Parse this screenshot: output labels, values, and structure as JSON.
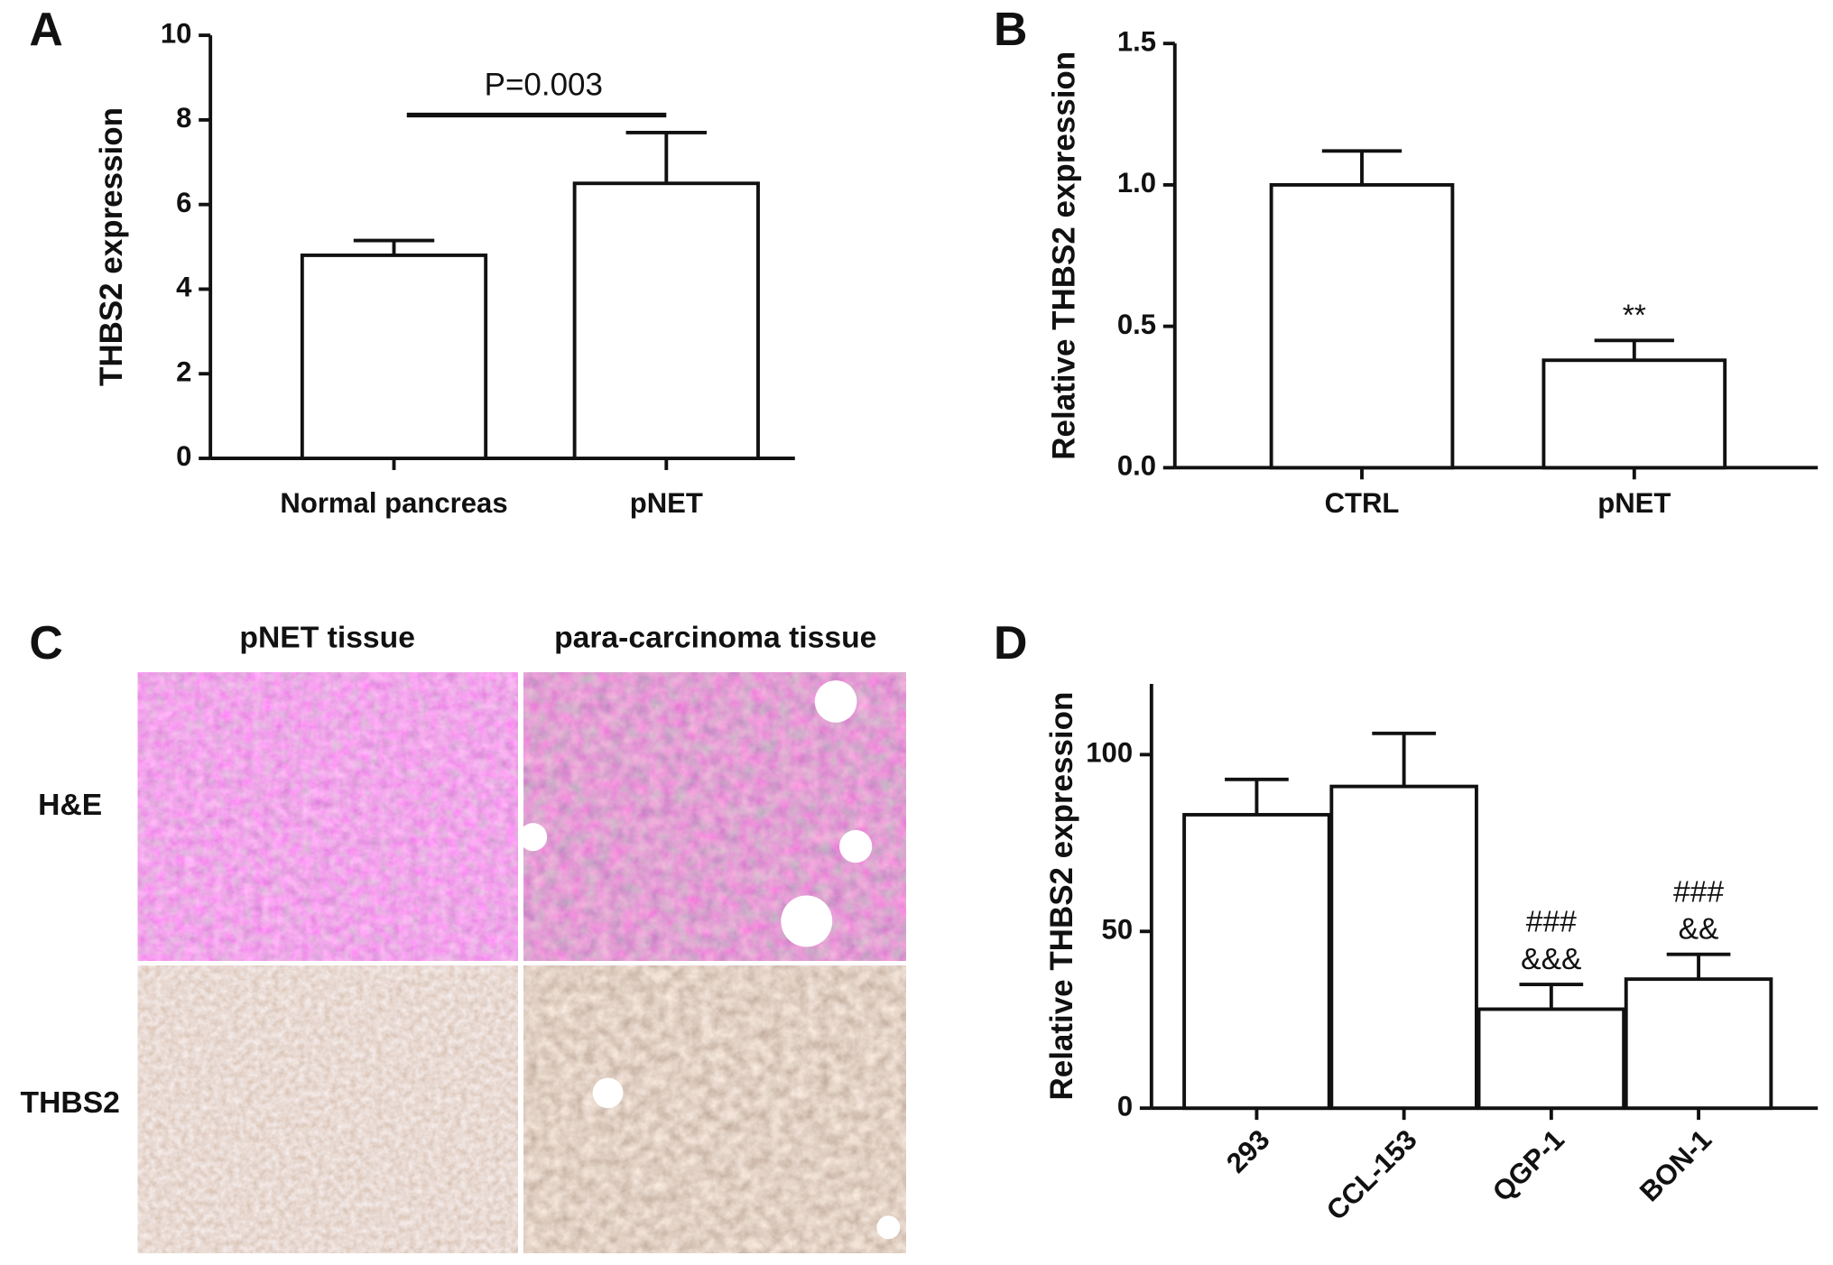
{
  "chart_data": [
    {
      "type": "bar",
      "panel": "A",
      "ylabel": "THBS2 expression",
      "categories": [
        "Normal pancreas",
        "pNET"
      ],
      "values": [
        4.8,
        6.5
      ],
      "errors": [
        0.35,
        1.2
      ],
      "color": "#ffffff",
      "ylim": [
        0,
        10
      ],
      "yticks": [
        0,
        2,
        4,
        6,
        8,
        10
      ],
      "annotations": [
        {
          "lines": [
            "P=0.003"
          ],
          "bracket": [
            "Normal pancreas",
            "pNET"
          ]
        }
      ]
    },
    {
      "type": "bar",
      "panel": "B",
      "ylabel": "Relative THBS2 expression",
      "categories": [
        "CTRL",
        "pNET"
      ],
      "values": [
        1.0,
        0.38
      ],
      "errors": [
        0.12,
        0.07
      ],
      "color": "#ffffff",
      "ylim": [
        0,
        1.5
      ],
      "yticks": [
        {
          "value": 0,
          "label": "0.0"
        },
        0.5,
        {
          "value": 1,
          "label": "1.0"
        },
        1.5
      ],
      "annotations": [
        {
          "lines": [
            "**"
          ],
          "category": "pNET"
        }
      ]
    },
    {
      "type": "bar",
      "panel": "D",
      "ylabel": "Relative THBS2 expression",
      "categories": [
        "293",
        "CCL-153",
        "QGP-1",
        "BON-1"
      ],
      "values": [
        83,
        91,
        28,
        36.5
      ],
      "errors": [
        10,
        15,
        7,
        7
      ],
      "color": "#ffffff",
      "ylim": [
        0,
        120
      ],
      "yticks": [
        0,
        50,
        100
      ],
      "annotations": [
        {
          "lines": [
            "###",
            "&&&"
          ],
          "category": "QGP-1"
        },
        {
          "lines": [
            "###",
            "&&"
          ],
          "category": "BON-1"
        }
      ]
    }
  ],
  "histology": {
    "panel": "C",
    "columns": [
      "pNET tissue",
      "para-carcinoma tissue"
    ],
    "rows": [
      "H&E",
      "THBS2"
    ]
  }
}
